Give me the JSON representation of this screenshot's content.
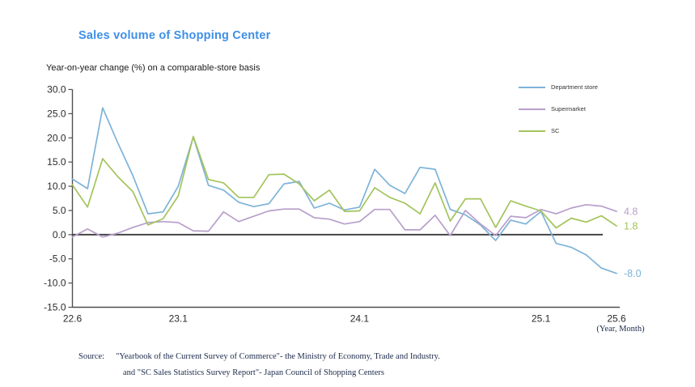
{
  "title": "Sales volume of Shopping Center",
  "subtitle": "Year-on-year change (%) on a comparable-store basis",
  "axis_note": "(Year, Month)",
  "legend": {
    "items": [
      {
        "label": "Department store"
      },
      {
        "label": "Supermarket"
      },
      {
        "label": "SC"
      }
    ]
  },
  "source": {
    "prefix": "Source:",
    "line1": "\"Yearbook of the Current Survey of Commerce\"- the Ministry of Economy, Trade and Industry.",
    "line2": "and \"SC Sales Statistics Survey Report\"- Japan Council of Shopping Centers"
  },
  "colors": {
    "title": "#3e8fe8",
    "department_store": "#7db3d8",
    "supermarket": "#b89fcb",
    "sc": "#a3c45c",
    "axis": "#4f4f4f",
    "zero_line": "#3a3a3a",
    "tick_text": "#2a2a2a"
  },
  "chart_data": {
    "type": "line",
    "title": "Sales volume of Shopping Center",
    "ylabel": "Year-on-year change (%) on a comparable-store basis",
    "xlabel": "(Year, Month)",
    "ylim": [
      -15.0,
      30.0
    ],
    "y_tick_step": 5.0,
    "grid": false,
    "legend_position": "top-right",
    "x": [
      "22.6",
      "22.7",
      "22.8",
      "22.9",
      "22.10",
      "22.11",
      "22.12",
      "23.1",
      "23.2",
      "23.3",
      "23.4",
      "23.5",
      "23.6",
      "23.7",
      "23.8",
      "23.9",
      "23.10",
      "23.11",
      "23.12",
      "24.1",
      "24.2",
      "24.3",
      "24.4",
      "24.5",
      "24.6",
      "24.7",
      "24.8",
      "24.9",
      "24.10",
      "24.11",
      "24.12",
      "25.1",
      "25.2",
      "25.3",
      "25.4",
      "25.5",
      "25.6"
    ],
    "x_tick_labels": [
      "22.6",
      "23.1",
      "24.1",
      "25.1",
      "25.6"
    ],
    "series": [
      {
        "name": "Department store",
        "color": "#7db3d8",
        "end_label": "-8.0",
        "values": [
          11.5,
          9.5,
          26.2,
          19.0,
          12.2,
          4.3,
          4.7,
          10.0,
          20.2,
          10.2,
          9.2,
          6.7,
          5.8,
          6.4,
          10.5,
          11.0,
          5.5,
          6.5,
          5.1,
          5.7,
          13.5,
          10.2,
          8.5,
          13.9,
          13.5,
          5.2,
          4.1,
          2.0,
          -1.2,
          3.0,
          2.2,
          4.8,
          -1.8,
          -2.6,
          -4.2,
          -6.9,
          -8.0
        ]
      },
      {
        "name": "Supermarket",
        "color": "#b89fcb",
        "end_label": "4.8",
        "values": [
          -0.5,
          1.2,
          -0.5,
          0.3,
          1.5,
          2.5,
          2.7,
          2.5,
          0.8,
          0.7,
          4.7,
          2.7,
          3.8,
          4.9,
          5.3,
          5.3,
          3.5,
          3.2,
          2.2,
          2.7,
          5.2,
          5.2,
          1.0,
          1.0,
          4.0,
          -0.2,
          5.0,
          2.2,
          -0.2,
          3.8,
          3.5,
          5.2,
          4.3,
          5.5,
          6.2,
          5.9,
          4.8
        ]
      },
      {
        "name": "SC",
        "color": "#a3c45c",
        "end_label": "1.8",
        "values": [
          10.3,
          5.7,
          15.7,
          12.0,
          8.9,
          2.0,
          3.3,
          8.0,
          20.3,
          11.4,
          10.7,
          7.7,
          7.7,
          12.4,
          12.5,
          10.5,
          7.0,
          9.2,
          4.8,
          4.9,
          9.7,
          7.7,
          6.5,
          4.3,
          10.7,
          2.8,
          7.4,
          7.4,
          1.5,
          7.0,
          5.9,
          4.9,
          1.4,
          3.4,
          2.6,
          3.9,
          1.8
        ]
      }
    ]
  }
}
